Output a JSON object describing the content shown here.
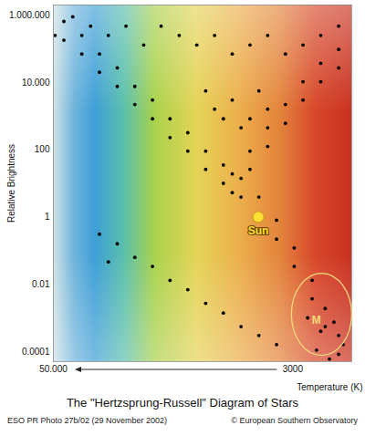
{
  "chart_data": {
    "type": "scatter",
    "title": "The \"Hertzsprung-Russell\" Diagram of Stars",
    "x_label": "Temperature (K)",
    "y_label": "Relative Brightness",
    "source": "ESO PR Photo 27b/02 (29 November 2002)",
    "credit": "© European Southern Observatory",
    "log": true,
    "grid": false,
    "color": "#000000",
    "marker": "dot",
    "xlim": [
      50000,
      1500
    ],
    "ylim": [
      5e-05,
      2000000
    ],
    "xticks": [
      {
        "value": 50000,
        "label": "50.000"
      },
      3000
    ],
    "yticks": [
      {
        "value": 1000000,
        "label": "1.000.000"
      },
      {
        "value": 10000,
        "label": "10.000"
      },
      100,
      1,
      0.01,
      0.0001
    ],
    "x": [
      44200,
      44200,
      35800,
      35800,
      29100,
      29100,
      23600,
      23600,
      19200,
      19200,
      15600,
      15600,
      12700,
      12700,
      10300,
      10300,
      8350,
      8350,
      6780,
      6780,
      5510,
      5510,
      4470,
      4470,
      3630,
      3630,
      2950,
      2950,
      2390,
      2390,
      2050,
      2050,
      1750,
      1750,
      2520,
      2160,
      1850,
      1660,
      2270,
      1950,
      26200,
      21300,
      17300,
      14100,
      11400,
      9270,
      7520,
      6110,
      4960,
      4030,
      3270,
      2660,
      2160,
      1750,
      39800,
      32300,
      49000,
      6110,
      6110,
      4960,
      4960,
      4030,
      4030,
      3270,
      3270,
      2660,
      2660,
      2160,
      2160,
      1750,
      1750,
      8350,
      7520,
      6110,
      4470,
      5510,
      4960,
      6780,
      4030,
      29100,
      23600,
      19200,
      15600,
      12700,
      10300,
      8350,
      6780,
      5510,
      4470,
      3630,
      26200
    ],
    "values": [
      650000,
      180000,
      250000,
      70000,
      70000,
      20000,
      27000,
      7600,
      7600,
      2200,
      3000,
      830,
      830,
      230,
      320,
      91,
      91,
      26,
      35,
      10,
      14,
      3.9,
      3.9,
      1.1,
      0.8,
      0.22,
      0.12,
      0.034,
      0.013,
      0.0037,
      0.0019,
      0.00055,
      0.0003,
      8.3e-05,
      0.001,
      0.0004,
      0.00075,
      0.00016,
      0.00011,
      6e-05,
      250000,
      470000,
      130000,
      470000,
      250000,
      130000,
      250000,
      70000,
      130000,
      250000,
      70000,
      130000,
      250000,
      470000,
      890000,
      470000,
      250000,
      19,
      5.3,
      91,
      26,
      450,
      125,
      2200,
      610,
      10500,
      3000,
      37000,
      10500,
      96000,
      27000,
      5600,
      1600,
      3000,
      5600,
      450,
      830,
      830,
      1600,
      0.31,
      0.16,
      0.063,
      0.034,
      0.013,
      0.0069,
      0.0027,
      0.0014,
      0.00055,
      0.0003,
      0.00016,
      0.046
    ],
    "annotations": [
      {
        "text": "Sun",
        "x": 4500,
        "y": 1,
        "color": "#ffe033",
        "marker": "circle"
      },
      {
        "text": "M",
        "x": 2270,
        "y": 0.00085,
        "color": "#f2dc7c",
        "marker": "ellipse"
      }
    ]
  }
}
